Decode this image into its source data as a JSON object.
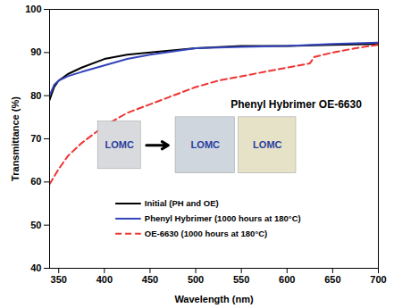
{
  "chart_data": {
    "type": "line",
    "title": "Phenyl Hybrimer OE-6630",
    "x_label": "Wavelength (nm)",
    "y_label": "Transmittance (%)",
    "xlim": [
      340,
      700
    ],
    "xticks": [
      350,
      400,
      450,
      500,
      550,
      600,
      650,
      700
    ],
    "ylim": [
      40,
      100
    ],
    "yticks": [
      40,
      50,
      60,
      70,
      80,
      90,
      100
    ],
    "annotations": [
      "LOMC",
      "LOMC",
      "LOMC"
    ],
    "series": [
      {
        "name": "Initial (PH and OE)",
        "color": "#000000",
        "line_style": "solid",
        "x": [
          340,
          345,
          350,
          360,
          375,
          400,
          425,
          450,
          500,
          550,
          600,
          650,
          700
        ],
        "values": [
          79,
          82,
          83.5,
          85,
          86.5,
          88.5,
          89.5,
          90,
          91,
          91.5,
          91.5,
          91.8,
          92
        ]
      },
      {
        "name": "Phenyl Hybrimer (1000 hours at 180°C)",
        "color": "#3344bb",
        "line_style": "solid",
        "x": [
          340,
          345,
          350,
          360,
          375,
          400,
          425,
          450,
          500,
          550,
          600,
          650,
          700
        ],
        "values": [
          80,
          82.5,
          83.5,
          84.5,
          85.5,
          87,
          88.5,
          89.5,
          91,
          91.3,
          91.5,
          92,
          92.3
        ]
      },
      {
        "name": "OE-6630 (1000 hours at 180°C)",
        "color": "#ee3333",
        "line_style": "dashed",
        "x": [
          340,
          350,
          360,
          375,
          400,
          425,
          450,
          475,
          500,
          525,
          550,
          575,
          600,
          625,
          630,
          650,
          675,
          700
        ],
        "values": [
          59.5,
          63,
          66,
          69,
          73,
          76,
          78,
          80,
          82,
          83.5,
          84.5,
          85.5,
          86.5,
          87.5,
          89,
          90,
          91,
          91.8
        ]
      }
    ]
  }
}
